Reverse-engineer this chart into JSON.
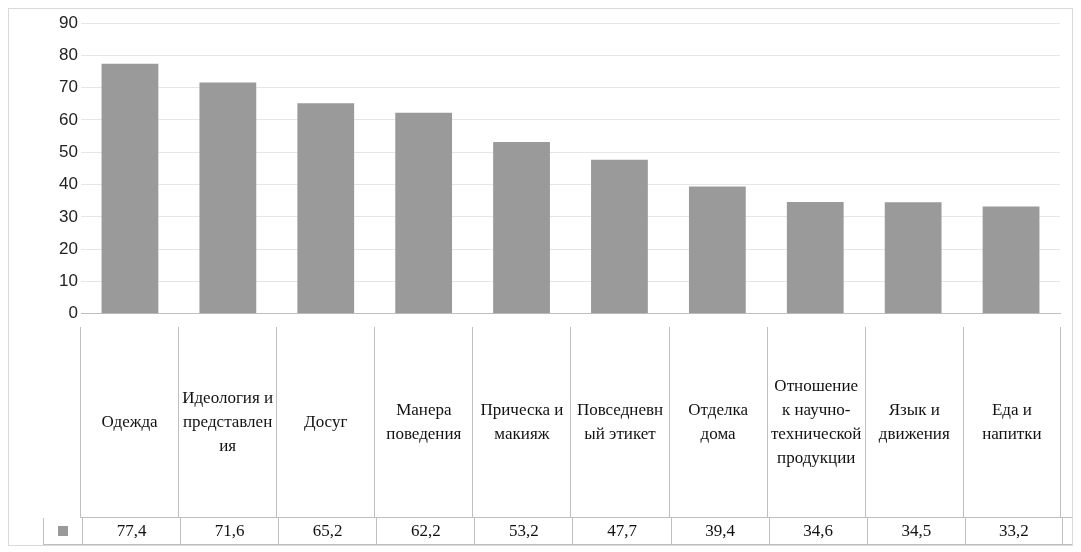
{
  "chart_data": {
    "type": "bar",
    "categories": [
      "Одежда",
      "Идеология и представления",
      "Досуг",
      "Манера поведения",
      "Прическа и макияж",
      "Повседневный этикет",
      "Отделка дома",
      "Отношение к научно-технической продукции",
      "Язык и движения",
      "Еда и напитки"
    ],
    "series": [
      {
        "color": "#9a9a9a",
        "values": [
          77.4,
          71.6,
          65.2,
          62.2,
          53.2,
          47.7,
          39.4,
          34.6,
          34.5,
          33.2
        ],
        "value_labels": [
          "77,4",
          "71,6",
          "65,2",
          "62,2",
          "53,2",
          "47,7",
          "39,4",
          "34,6",
          "34,5",
          "33,2"
        ]
      }
    ],
    "ylim": [
      0,
      90
    ],
    "yticks": [
      0,
      10,
      20,
      30,
      40,
      50,
      60,
      70,
      80,
      90
    ],
    "grid": "y"
  }
}
